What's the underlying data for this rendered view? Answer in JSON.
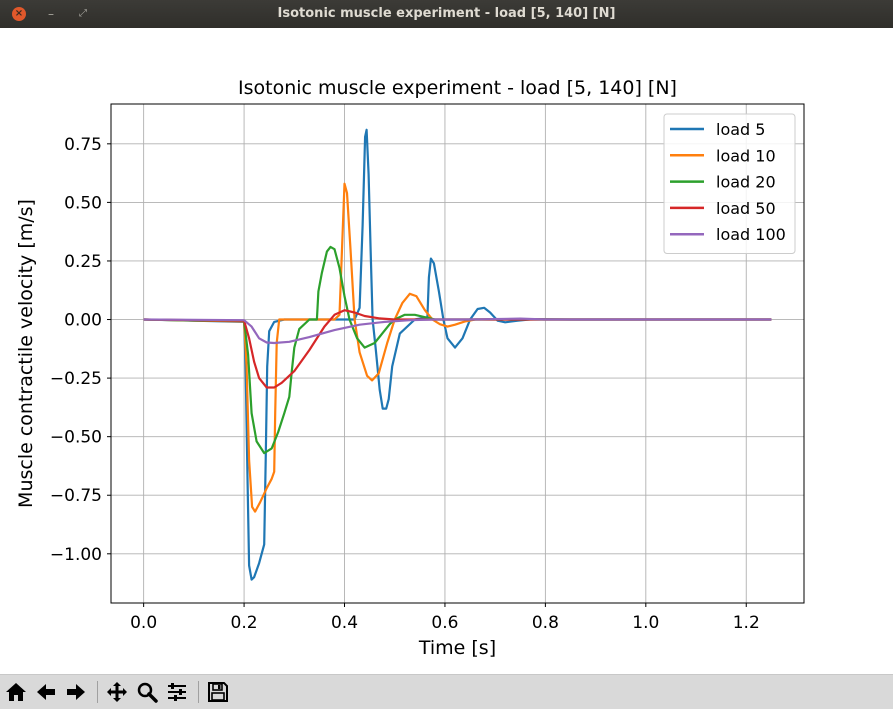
{
  "window": {
    "title": "Isotonic muscle experiment - load [5, 140] [N]",
    "close_glyph": "×",
    "minimize_glyph": "–",
    "maximize_glyph": "⤢"
  },
  "toolbar": {
    "buttons": [
      "home-icon",
      "back-arrow-icon",
      "forward-arrow-icon",
      "pan-icon",
      "zoom-icon",
      "configure-subplots-icon",
      "save-icon"
    ]
  },
  "chart_data": {
    "type": "line",
    "title": "Isotonic muscle experiment - load [5, 140] [N]",
    "xlabel": "Time [s]",
    "ylabel": "Muscle contractile velocity [m/s]",
    "xlim": [
      -0.065,
      1.315
    ],
    "ylim": [
      -1.21,
      0.92
    ],
    "xticks": [
      0.0,
      0.2,
      0.4,
      0.6,
      0.8,
      1.0,
      1.2
    ],
    "xtick_labels": [
      "0.0",
      "0.2",
      "0.4",
      "0.6",
      "0.8",
      "1.0",
      "1.2"
    ],
    "yticks": [
      -1.0,
      -0.75,
      -0.5,
      -0.25,
      0.0,
      0.25,
      0.5,
      0.75
    ],
    "ytick_labels": [
      "−1.00",
      "−0.75",
      "−0.50",
      "−0.25",
      "0.00",
      "0.25",
      "0.50",
      "0.75"
    ],
    "grid": true,
    "legend_position": "top-right",
    "series": [
      {
        "name": "load 5",
        "color": "#1f77b4",
        "points": [
          [
            0.0,
            0.0
          ],
          [
            0.1,
            -0.005
          ],
          [
            0.2,
            -0.01
          ],
          [
            0.203,
            -0.2
          ],
          [
            0.207,
            -0.7
          ],
          [
            0.21,
            -1.05
          ],
          [
            0.215,
            -1.11
          ],
          [
            0.22,
            -1.1
          ],
          [
            0.23,
            -1.04
          ],
          [
            0.24,
            -0.96
          ],
          [
            0.243,
            -0.6
          ],
          [
            0.246,
            -0.2
          ],
          [
            0.25,
            -0.05
          ],
          [
            0.26,
            -0.01
          ],
          [
            0.28,
            0.0
          ],
          [
            0.42,
            0.0
          ],
          [
            0.43,
            0.05
          ],
          [
            0.436,
            0.4
          ],
          [
            0.441,
            0.78
          ],
          [
            0.444,
            0.81
          ],
          [
            0.448,
            0.62
          ],
          [
            0.452,
            0.3
          ],
          [
            0.456,
            0.0
          ],
          [
            0.462,
            -0.12
          ],
          [
            0.47,
            -0.3
          ],
          [
            0.476,
            -0.38
          ],
          [
            0.483,
            -0.38
          ],
          [
            0.488,
            -0.34
          ],
          [
            0.495,
            -0.2
          ],
          [
            0.51,
            -0.06
          ],
          [
            0.54,
            0.0
          ],
          [
            0.565,
            0.01
          ],
          [
            0.568,
            0.18
          ],
          [
            0.572,
            0.26
          ],
          [
            0.578,
            0.24
          ],
          [
            0.588,
            0.12
          ],
          [
            0.597,
            0.0
          ],
          [
            0.605,
            -0.08
          ],
          [
            0.62,
            -0.12
          ],
          [
            0.635,
            -0.08
          ],
          [
            0.65,
            0.0
          ],
          [
            0.665,
            0.045
          ],
          [
            0.678,
            0.05
          ],
          [
            0.69,
            0.03
          ],
          [
            0.705,
            -0.005
          ],
          [
            0.72,
            -0.012
          ],
          [
            0.745,
            -0.005
          ],
          [
            0.775,
            0.002
          ],
          [
            0.85,
            0.0
          ],
          [
            1.0,
            0.0
          ],
          [
            1.25,
            0.0
          ]
        ]
      },
      {
        "name": "load 10",
        "color": "#ff7f0e",
        "points": [
          [
            0.0,
            0.0
          ],
          [
            0.1,
            -0.004
          ],
          [
            0.2,
            -0.008
          ],
          [
            0.205,
            -0.2
          ],
          [
            0.21,
            -0.6
          ],
          [
            0.216,
            -0.8
          ],
          [
            0.222,
            -0.82
          ],
          [
            0.232,
            -0.78
          ],
          [
            0.245,
            -0.72
          ],
          [
            0.255,
            -0.68
          ],
          [
            0.26,
            -0.65
          ],
          [
            0.262,
            -0.4
          ],
          [
            0.265,
            -0.1
          ],
          [
            0.27,
            0.0
          ],
          [
            0.38,
            0.0
          ],
          [
            0.39,
            0.02
          ],
          [
            0.395,
            0.3
          ],
          [
            0.4,
            0.58
          ],
          [
            0.405,
            0.54
          ],
          [
            0.412,
            0.3
          ],
          [
            0.42,
            0.0
          ],
          [
            0.43,
            -0.14
          ],
          [
            0.445,
            -0.24
          ],
          [
            0.455,
            -0.26
          ],
          [
            0.468,
            -0.23
          ],
          [
            0.485,
            -0.1
          ],
          [
            0.5,
            0.0
          ],
          [
            0.515,
            0.07
          ],
          [
            0.53,
            0.11
          ],
          [
            0.543,
            0.1
          ],
          [
            0.56,
            0.04
          ],
          [
            0.575,
            0.0
          ],
          [
            0.59,
            -0.02
          ],
          [
            0.605,
            -0.03
          ],
          [
            0.62,
            -0.022
          ],
          [
            0.64,
            -0.008
          ],
          [
            0.66,
            0.0
          ],
          [
            0.7,
            0.002
          ],
          [
            0.8,
            0.0
          ],
          [
            1.25,
            0.0
          ]
        ]
      },
      {
        "name": "load 20",
        "color": "#2ca02c",
        "points": [
          [
            0.0,
            0.0
          ],
          [
            0.1,
            -0.004
          ],
          [
            0.2,
            -0.005
          ],
          [
            0.208,
            -0.15
          ],
          [
            0.215,
            -0.4
          ],
          [
            0.225,
            -0.52
          ],
          [
            0.24,
            -0.57
          ],
          [
            0.255,
            -0.55
          ],
          [
            0.268,
            -0.48
          ],
          [
            0.28,
            -0.4
          ],
          [
            0.29,
            -0.33
          ],
          [
            0.295,
            -0.22
          ],
          [
            0.3,
            -0.12
          ],
          [
            0.31,
            -0.04
          ],
          [
            0.33,
            0.0
          ],
          [
            0.345,
            0.0
          ],
          [
            0.348,
            0.12
          ],
          [
            0.355,
            0.2
          ],
          [
            0.365,
            0.29
          ],
          [
            0.372,
            0.31
          ],
          [
            0.38,
            0.3
          ],
          [
            0.39,
            0.22
          ],
          [
            0.4,
            0.1
          ],
          [
            0.41,
            0.0
          ],
          [
            0.425,
            -0.08
          ],
          [
            0.44,
            -0.12
          ],
          [
            0.46,
            -0.1
          ],
          [
            0.475,
            -0.06
          ],
          [
            0.49,
            -0.02
          ],
          [
            0.5,
            0.0
          ],
          [
            0.52,
            0.02
          ],
          [
            0.54,
            0.02
          ],
          [
            0.56,
            0.01
          ],
          [
            0.58,
            0.0
          ],
          [
            0.62,
            0.0
          ],
          [
            1.25,
            0.0
          ]
        ]
      },
      {
        "name": "load 50",
        "color": "#d62728",
        "points": [
          [
            0.0,
            0.0
          ],
          [
            0.1,
            -0.003
          ],
          [
            0.2,
            -0.005
          ],
          [
            0.21,
            -0.08
          ],
          [
            0.22,
            -0.18
          ],
          [
            0.23,
            -0.25
          ],
          [
            0.245,
            -0.29
          ],
          [
            0.26,
            -0.29
          ],
          [
            0.275,
            -0.27
          ],
          [
            0.3,
            -0.22
          ],
          [
            0.33,
            -0.13
          ],
          [
            0.36,
            -0.03
          ],
          [
            0.38,
            0.02
          ],
          [
            0.4,
            0.04
          ],
          [
            0.42,
            0.03
          ],
          [
            0.44,
            0.015
          ],
          [
            0.47,
            0.005
          ],
          [
            0.5,
            0.0
          ],
          [
            0.55,
            0.0
          ],
          [
            1.25,
            0.0
          ]
        ]
      },
      {
        "name": "load 100",
        "color": "#9467bd",
        "points": [
          [
            0.0,
            0.0
          ],
          [
            0.1,
            -0.001
          ],
          [
            0.2,
            -0.003
          ],
          [
            0.215,
            -0.03
          ],
          [
            0.23,
            -0.08
          ],
          [
            0.245,
            -0.098
          ],
          [
            0.26,
            -0.1
          ],
          [
            0.29,
            -0.095
          ],
          [
            0.33,
            -0.075
          ],
          [
            0.38,
            -0.045
          ],
          [
            0.43,
            -0.022
          ],
          [
            0.48,
            -0.01
          ],
          [
            0.53,
            -0.003
          ],
          [
            0.58,
            0.0
          ],
          [
            0.65,
            0.0
          ],
          [
            0.75,
            0.004
          ],
          [
            0.8,
            0.0
          ],
          [
            1.25,
            0.0
          ]
        ]
      }
    ]
  }
}
